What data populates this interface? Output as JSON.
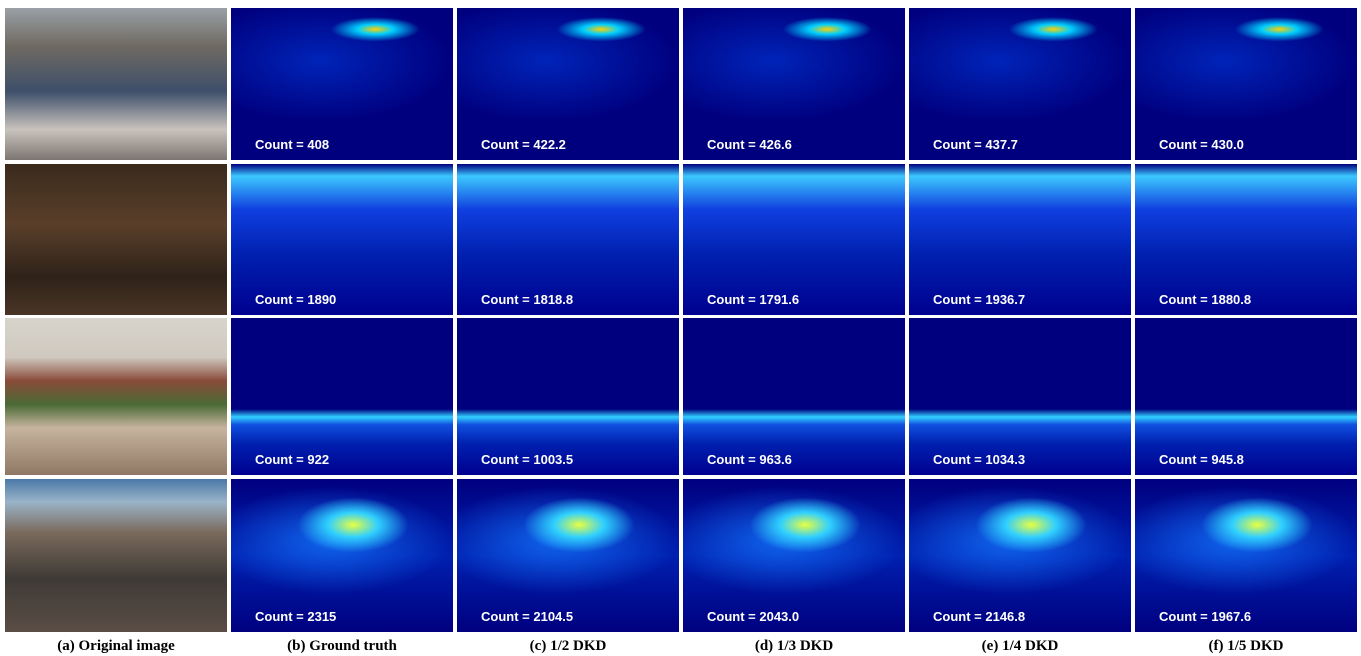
{
  "columns": [
    "(a) Original image",
    "(b) Ground truth",
    "(c) 1/2 DKD",
    "(d) 1/3 DKD",
    "(e) 1/4 DKD",
    "(f) 1/5 DKD"
  ],
  "rows": [
    [
      "Count = 408",
      "Count = 422.2",
      "Count = 426.6",
      "Count = 437.7",
      "Count = 430.0"
    ],
    [
      "Count = 1890",
      "Count = 1818.8",
      "Count = 1791.6",
      "Count = 1936.7",
      "Count = 1880.8"
    ],
    [
      "Count = 922",
      "Count = 1003.5",
      "Count = 963.6",
      "Count = 1034.3",
      "Count = 945.8"
    ],
    [
      "Count = 2315",
      "Count = 2104.5",
      "Count = 2043.0",
      "Count = 2146.8",
      "Count = 1967.6"
    ]
  ]
}
